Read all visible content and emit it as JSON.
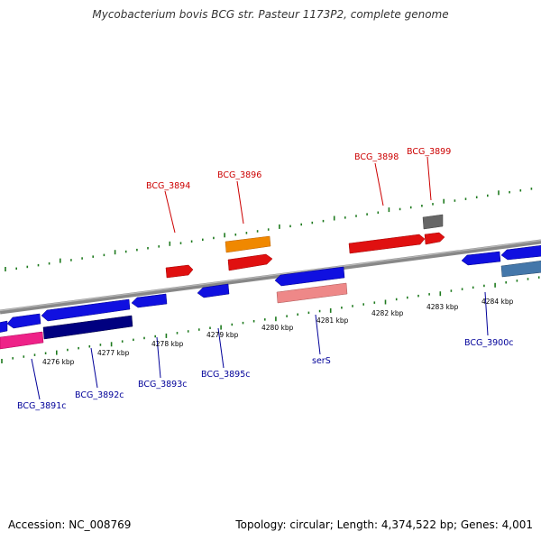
{
  "title": "Mycobacterium bovis BCG str. Pasteur 1173P2, complete genome",
  "footer": {
    "accession": "Accession: NC_008769",
    "summary": "Topology: circular; Length: 4,374,522 bp; Genes: 4,001"
  },
  "colors": {
    "backbone": "#888888",
    "tick": "#1e7a1e",
    "label_forward": "#cc0000",
    "label_reverse": "#000099",
    "red": "#e01010",
    "orange": "#f08800",
    "grey": "#666666",
    "blue": "#1010e0",
    "navy": "#000080",
    "pink": "#ee2288",
    "salmon": "#ee8888",
    "steel": "#4477aa"
  },
  "axis_labels": [
    "4276 kbp",
    "4277 kbp",
    "4278 kbp",
    "4279 kbp",
    "4280 kbp",
    "4281 kbp",
    "4282 kbp",
    "4283 kbp",
    "4284 kbp"
  ],
  "forward_labels": [
    "BCG_3894",
    "BCG_3896",
    "BCG_3898",
    "BCG_3899"
  ],
  "reverse_labels": [
    "BCG_3891c",
    "BCG_3892c",
    "BCG_3893c",
    "BCG_3895c",
    "serS",
    "BCG_3900c"
  ],
  "features": [
    {
      "name": "gene-red-1",
      "color": "red",
      "strand": "forward"
    },
    {
      "name": "gene-orange",
      "color": "orange",
      "strand": "forward"
    },
    {
      "name": "gene-red-2",
      "color": "red",
      "strand": "forward"
    },
    {
      "name": "gene-red-3",
      "color": "red",
      "strand": "forward"
    },
    {
      "name": "gene-red-4",
      "color": "red",
      "strand": "forward"
    },
    {
      "name": "gene-grey",
      "color": "grey",
      "strand": "forward"
    },
    {
      "name": "gene-blue-1",
      "color": "blue",
      "strand": "reverse"
    },
    {
      "name": "gene-blue-2",
      "color": "blue",
      "strand": "reverse"
    },
    {
      "name": "gene-blue-3",
      "color": "blue",
      "strand": "reverse"
    },
    {
      "name": "gene-blue-4",
      "color": "blue",
      "strand": "reverse"
    },
    {
      "name": "gene-blue-5",
      "color": "blue",
      "strand": "reverse"
    },
    {
      "name": "gene-blue-6",
      "color": "blue",
      "strand": "reverse"
    },
    {
      "name": "gene-blue-7",
      "color": "blue",
      "strand": "reverse"
    },
    {
      "name": "gene-blue-8",
      "color": "blue",
      "strand": "reverse"
    },
    {
      "name": "gene-pink",
      "color": "pink",
      "strand": "reverse"
    },
    {
      "name": "gene-navy",
      "color": "navy",
      "strand": "reverse"
    },
    {
      "name": "gene-salmon",
      "color": "salmon",
      "strand": "reverse"
    },
    {
      "name": "gene-steel",
      "color": "steel",
      "strand": "reverse"
    }
  ]
}
